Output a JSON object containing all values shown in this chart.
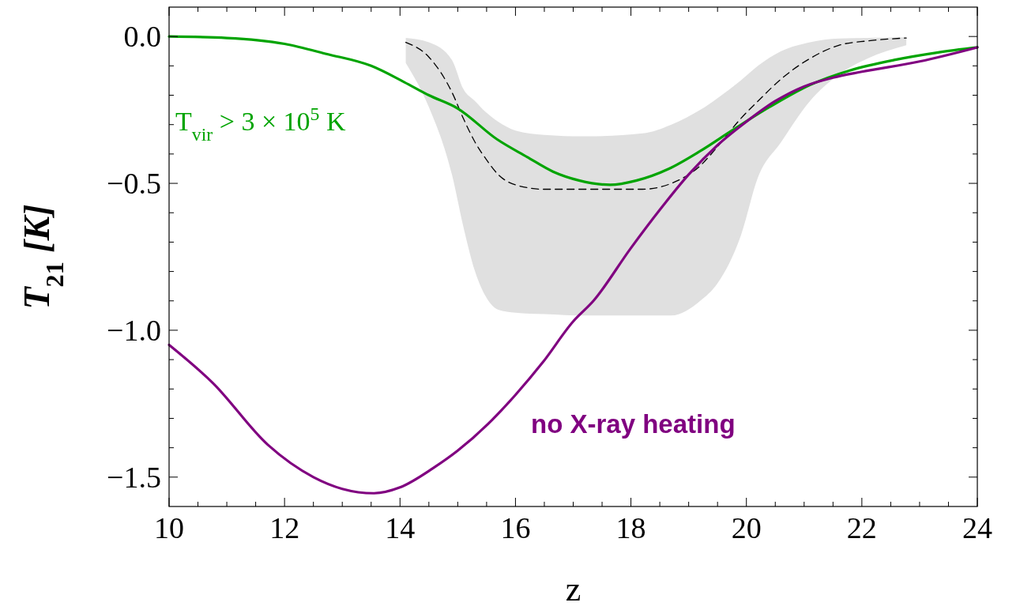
{
  "chart_data": {
    "type": "line",
    "xlabel": "z",
    "ylabel": "T$_{21}$  [K]",
    "xlim": [
      10,
      24
    ],
    "ylim": [
      -1.6,
      0.1
    ],
    "xticks": [
      10,
      {
        "value": 10.5,
        "label": null
      },
      {
        "value": 11,
        "label": null
      },
      {
        "value": 11.5,
        "label": null
      },
      12,
      {
        "value": 12.5,
        "label": null
      },
      {
        "value": 13,
        "label": null
      },
      {
        "value": 13.5,
        "label": null
      },
      14,
      {
        "value": 14.5,
        "label": null
      },
      {
        "value": 15,
        "label": null
      },
      {
        "value": 15.5,
        "label": null
      },
      16,
      {
        "value": 16.5,
        "label": null
      },
      {
        "value": 17,
        "label": null
      },
      {
        "value": 17.5,
        "label": null
      },
      18,
      {
        "value": 18.5,
        "label": null
      },
      {
        "value": 19,
        "label": null
      },
      {
        "value": 19.5,
        "label": null
      },
      20,
      {
        "value": 20.5,
        "label": null
      },
      {
        "value": 21,
        "label": null
      },
      {
        "value": 21.5,
        "label": null
      },
      22,
      {
        "value": 22.5,
        "label": null
      },
      {
        "value": 23,
        "label": null
      },
      {
        "value": 23.5,
        "label": null
      },
      24
    ],
    "yticks": [
      {
        "value": 0,
        "label": "0.0"
      },
      {
        "value": -0.1,
        "label": null
      },
      {
        "value": -0.2,
        "label": null
      },
      {
        "value": -0.3,
        "label": null
      },
      {
        "value": -0.4,
        "label": null
      },
      {
        "value": -0.5,
        "label": "−0.5"
      },
      {
        "value": -0.6,
        "label": null
      },
      {
        "value": -0.7,
        "label": null
      },
      {
        "value": -0.8,
        "label": null
      },
      {
        "value": -0.9,
        "label": null
      },
      {
        "value": -1,
        "label": "−1.0"
      },
      {
        "value": -1.1,
        "label": null
      },
      {
        "value": -1.2,
        "label": null
      },
      {
        "value": -1.3,
        "label": null
      },
      {
        "value": -1.4,
        "label": null
      },
      {
        "value": -1.5,
        "label": "−1.5"
      }
    ],
    "series": [
      {
        "color": "#000000",
        "line_style": "dashed",
        "x": [
          14.1,
          14.5,
          14.9,
          15.1,
          15.3,
          15.5,
          15.7,
          16.0,
          16.5,
          17.2,
          18.2,
          18.7,
          19.2,
          19.5,
          19.9,
          20.2,
          20.6,
          21.1,
          21.6,
          22.1,
          22.77
        ],
        "values": [
          -0.02,
          -0.07,
          -0.19,
          -0.28,
          -0.36,
          -0.42,
          -0.47,
          -0.505,
          -0.52,
          -0.52,
          -0.52,
          -0.5,
          -0.44,
          -0.375,
          -0.28,
          -0.22,
          -0.145,
          -0.075,
          -0.03,
          -0.015,
          -0.005
        ],
        "upper": [
          -0.005,
          -0.02,
          -0.08,
          -0.18,
          -0.22,
          -0.26,
          -0.29,
          -0.32,
          -0.335,
          -0.34,
          -0.33,
          -0.3,
          -0.25,
          -0.21,
          -0.15,
          -0.1,
          -0.05,
          -0.02,
          -0.007,
          -0.005,
          -0.003
        ],
        "lower": [
          -0.09,
          -0.24,
          -0.47,
          -0.65,
          -0.8,
          -0.89,
          -0.93,
          -0.94,
          -0.945,
          -0.95,
          -0.95,
          -0.95,
          -0.9,
          -0.84,
          -0.68,
          -0.48,
          -0.36,
          -0.22,
          -0.13,
          -0.075,
          -0.03
        ]
      },
      {
        "name": "T$_{vir}$ > 3 × 10$^{5}$ K",
        "color": "#00a400",
        "line_style": "solid",
        "x": [
          10,
          11,
          12,
          12.74,
          13.5,
          14.07,
          14.5,
          15,
          15.68,
          16.2,
          16.65,
          17.1,
          17.64,
          18.1,
          18.66,
          19.2,
          19.75,
          20.4,
          21.1,
          21.8,
          22.56,
          23.3,
          24
        ],
        "values": [
          0,
          -0.005,
          -0.025,
          -0.06,
          -0.1,
          -0.155,
          -0.2,
          -0.245,
          -0.35,
          -0.41,
          -0.46,
          -0.49,
          -0.505,
          -0.49,
          -0.45,
          -0.39,
          -0.32,
          -0.24,
          -0.165,
          -0.115,
          -0.08,
          -0.055,
          -0.037
        ]
      },
      {
        "name": "no X-ray heating",
        "color": "#800080",
        "line_style": "solid",
        "x": [
          10,
          10.76,
          11.71,
          12.5,
          13,
          13.55,
          14,
          14.57,
          15,
          15.52,
          16,
          16.47,
          17,
          17.35,
          18,
          18.5,
          19,
          19.5,
          20,
          20.5,
          21,
          21.5,
          22,
          23,
          24
        ],
        "values": [
          -1.05,
          -1.18,
          -1.39,
          -1.5,
          -1.54,
          -1.555,
          -1.535,
          -1.47,
          -1.41,
          -1.32,
          -1.22,
          -1.11,
          -0.97,
          -0.9,
          -0.72,
          -0.59,
          -0.47,
          -0.37,
          -0.29,
          -0.22,
          -0.17,
          -0.14,
          -0.12,
          -0.085,
          -0.037
        ]
      }
    ]
  }
}
